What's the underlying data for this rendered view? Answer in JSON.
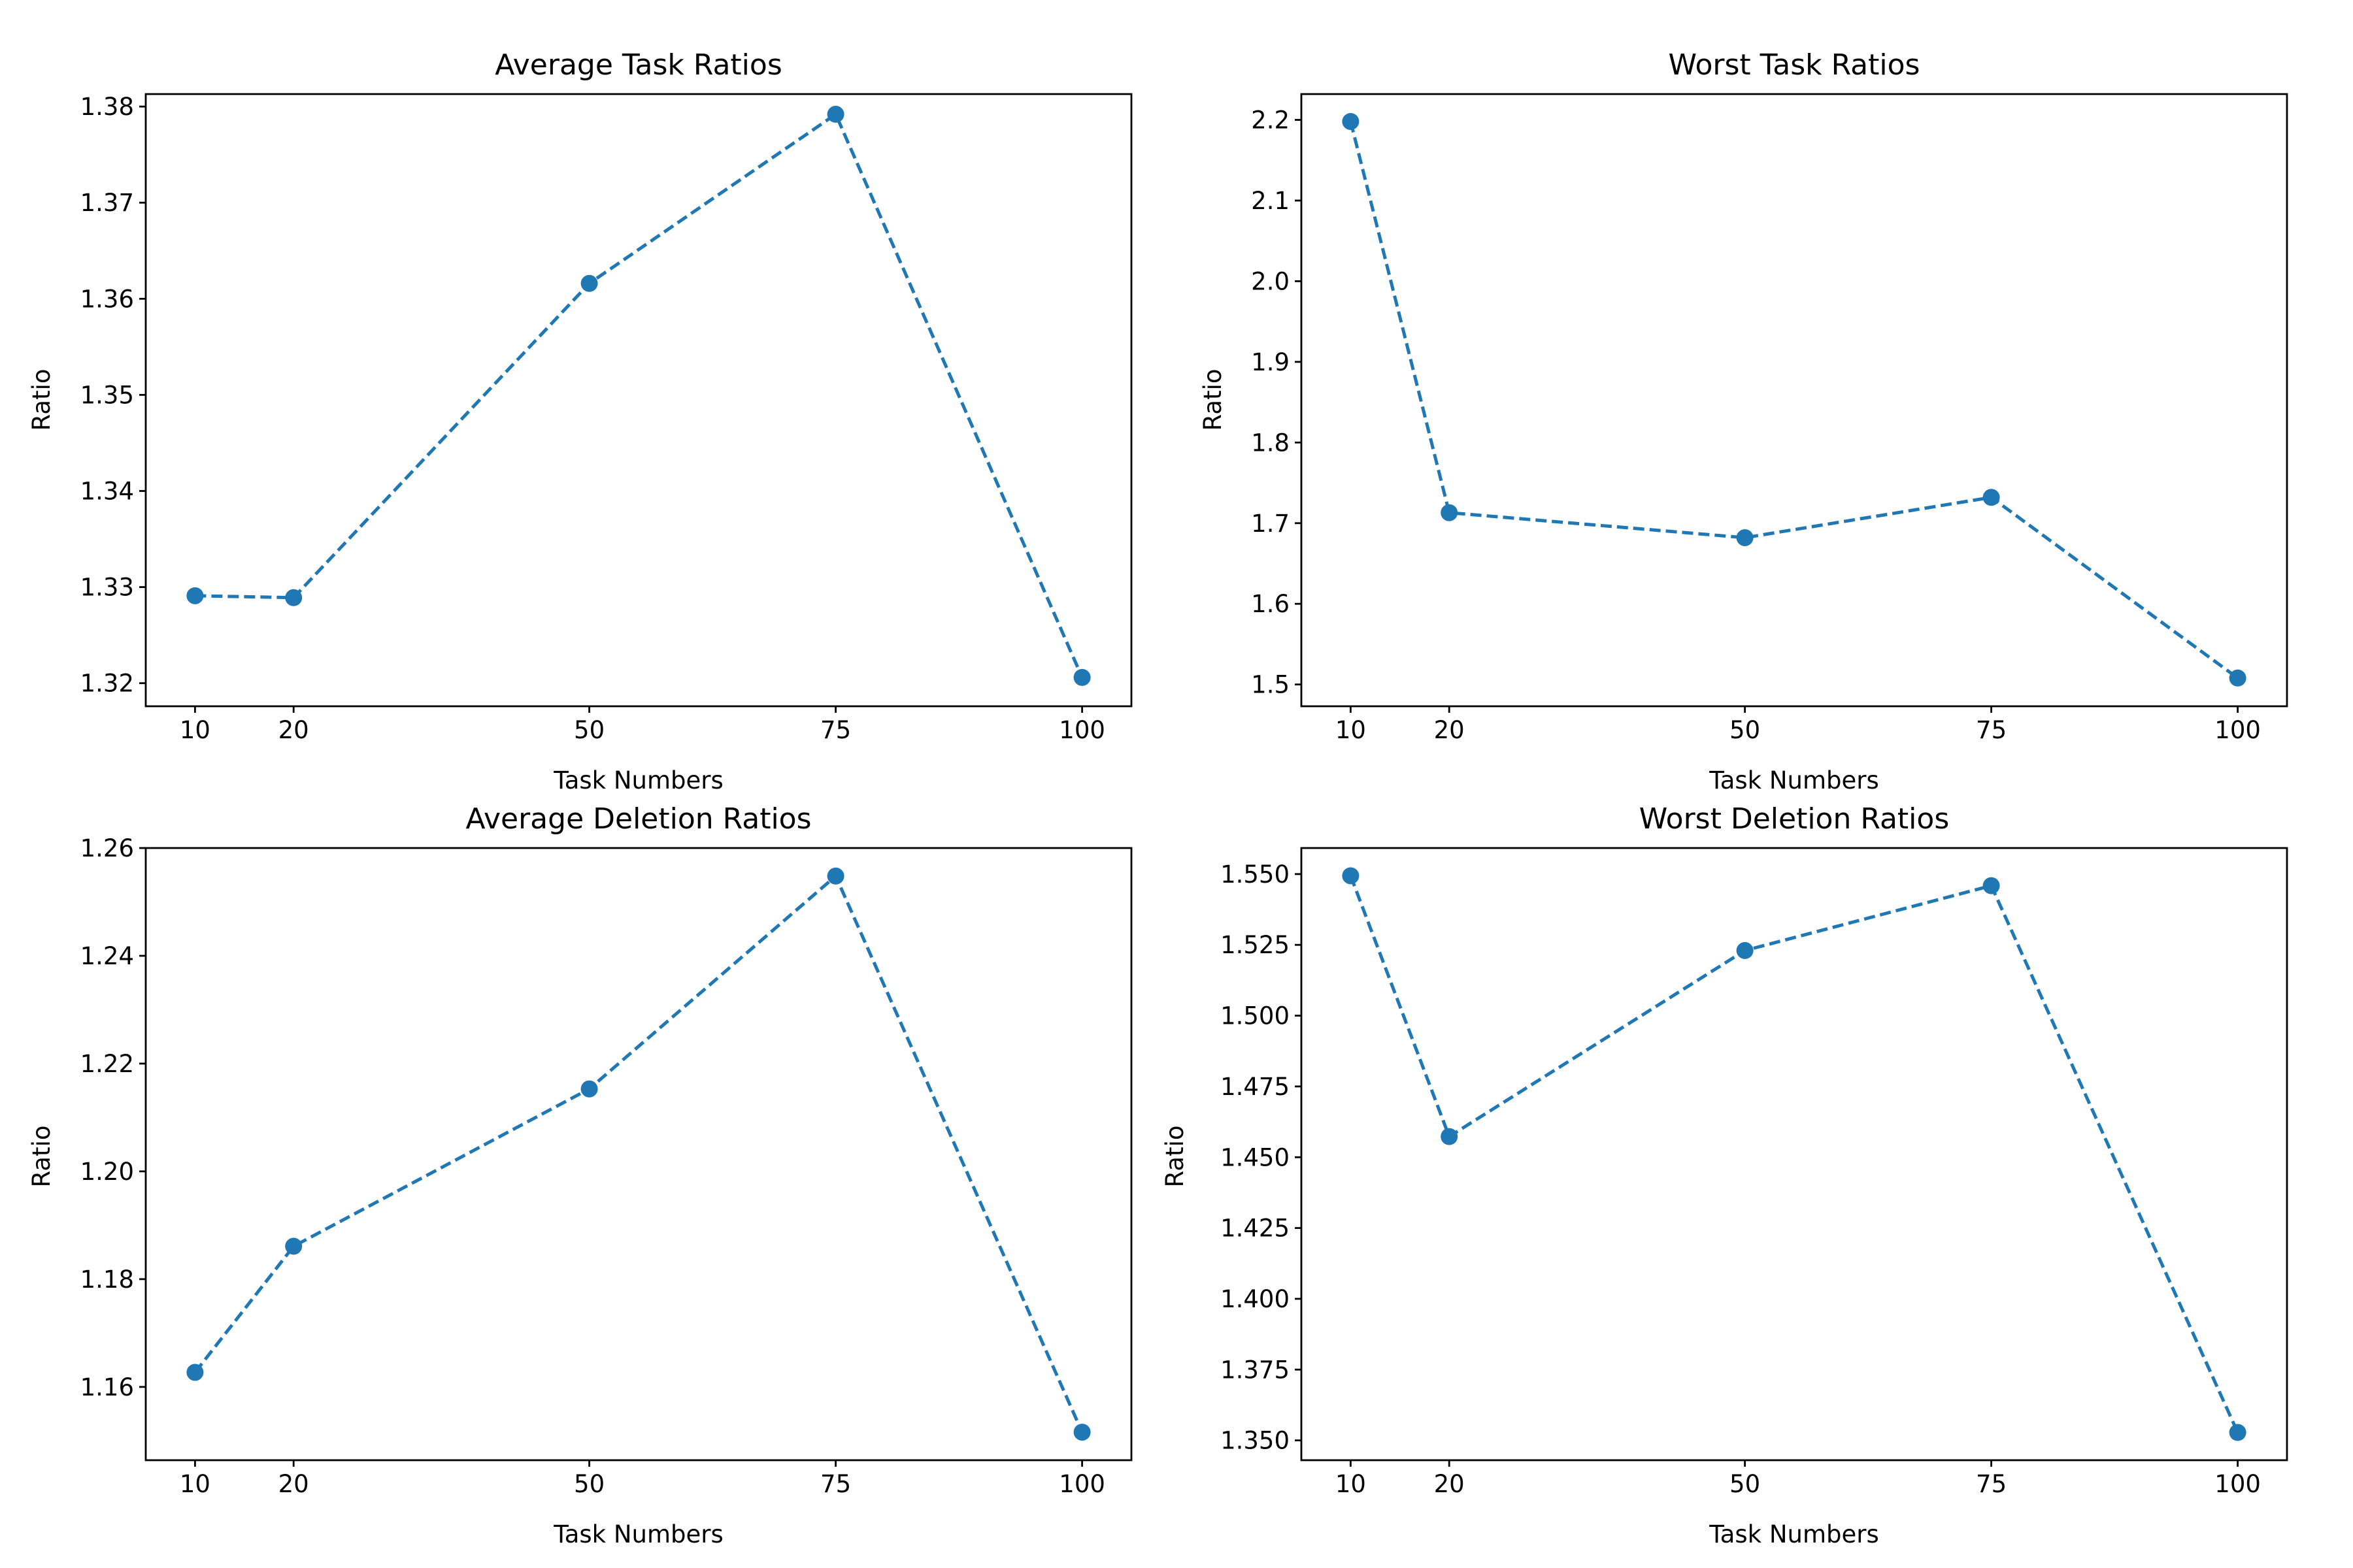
{
  "colors": {
    "series": "#1f77b4",
    "axes": "#000000",
    "background": "#ffffff"
  },
  "chart_data": [
    {
      "type": "line",
      "title": "Average Task Ratios",
      "xlabel": "Task Numbers",
      "ylabel": "Ratio",
      "x": [
        10,
        20,
        50,
        75,
        100
      ],
      "values": [
        1.3291,
        1.3289,
        1.3616,
        1.3792,
        1.3206
      ],
      "xticks": [
        10,
        20,
        50,
        75,
        100
      ],
      "yticks": [
        "1.32",
        "1.33",
        "1.34",
        "1.35",
        "1.36",
        "1.37",
        "1.38"
      ],
      "xlim": [
        5,
        105
      ],
      "ylim": [
        1.3176,
        1.3813
      ],
      "grid": false,
      "line_style": "dashed",
      "marker": "circle"
    },
    {
      "type": "line",
      "title": "Worst Task Ratios",
      "xlabel": "Task Numbers",
      "ylabel": "Ratio",
      "x": [
        10,
        20,
        50,
        75,
        100
      ],
      "values": [
        2.198,
        1.713,
        1.682,
        1.732,
        1.508
      ],
      "xticks": [
        10,
        20,
        50,
        75,
        100
      ],
      "yticks": [
        "1.5",
        "1.6",
        "1.7",
        "1.8",
        "1.9",
        "2.0",
        "2.1",
        "2.2"
      ],
      "xlim": [
        5,
        105
      ],
      "ylim": [
        1.473,
        2.232
      ],
      "grid": false,
      "line_style": "dashed",
      "marker": "circle"
    },
    {
      "type": "line",
      "title": "Average Deletion Ratios",
      "xlabel": "Task Numbers",
      "ylabel": "Ratio",
      "x": [
        10,
        20,
        50,
        75,
        100
      ],
      "values": [
        1.1627,
        1.1861,
        1.2153,
        1.2548,
        1.1516
      ],
      "xticks": [
        10,
        20,
        50,
        75,
        100
      ],
      "yticks": [
        "1.16",
        "1.18",
        "1.20",
        "1.22",
        "1.24",
        "1.26"
      ],
      "xlim": [
        5,
        105
      ],
      "ylim": [
        1.1464,
        1.26
      ],
      "grid": false,
      "line_style": "dashed",
      "marker": "circle"
    },
    {
      "type": "line",
      "title": "Worst Deletion Ratios",
      "xlabel": "Task Numbers",
      "ylabel": "Ratio",
      "x": [
        10,
        20,
        50,
        75,
        100
      ],
      "values": [
        1.5494,
        1.4573,
        1.523,
        1.5459,
        1.3528
      ],
      "xticks": [
        10,
        20,
        50,
        75,
        100
      ],
      "yticks": [
        "1.350",
        "1.375",
        "1.400",
        "1.425",
        "1.450",
        "1.475",
        "1.500",
        "1.525",
        "1.550"
      ],
      "xlim": [
        5,
        105
      ],
      "ylim": [
        1.343,
        1.5592
      ],
      "grid": false,
      "line_style": "dashed",
      "marker": "circle"
    }
  ]
}
